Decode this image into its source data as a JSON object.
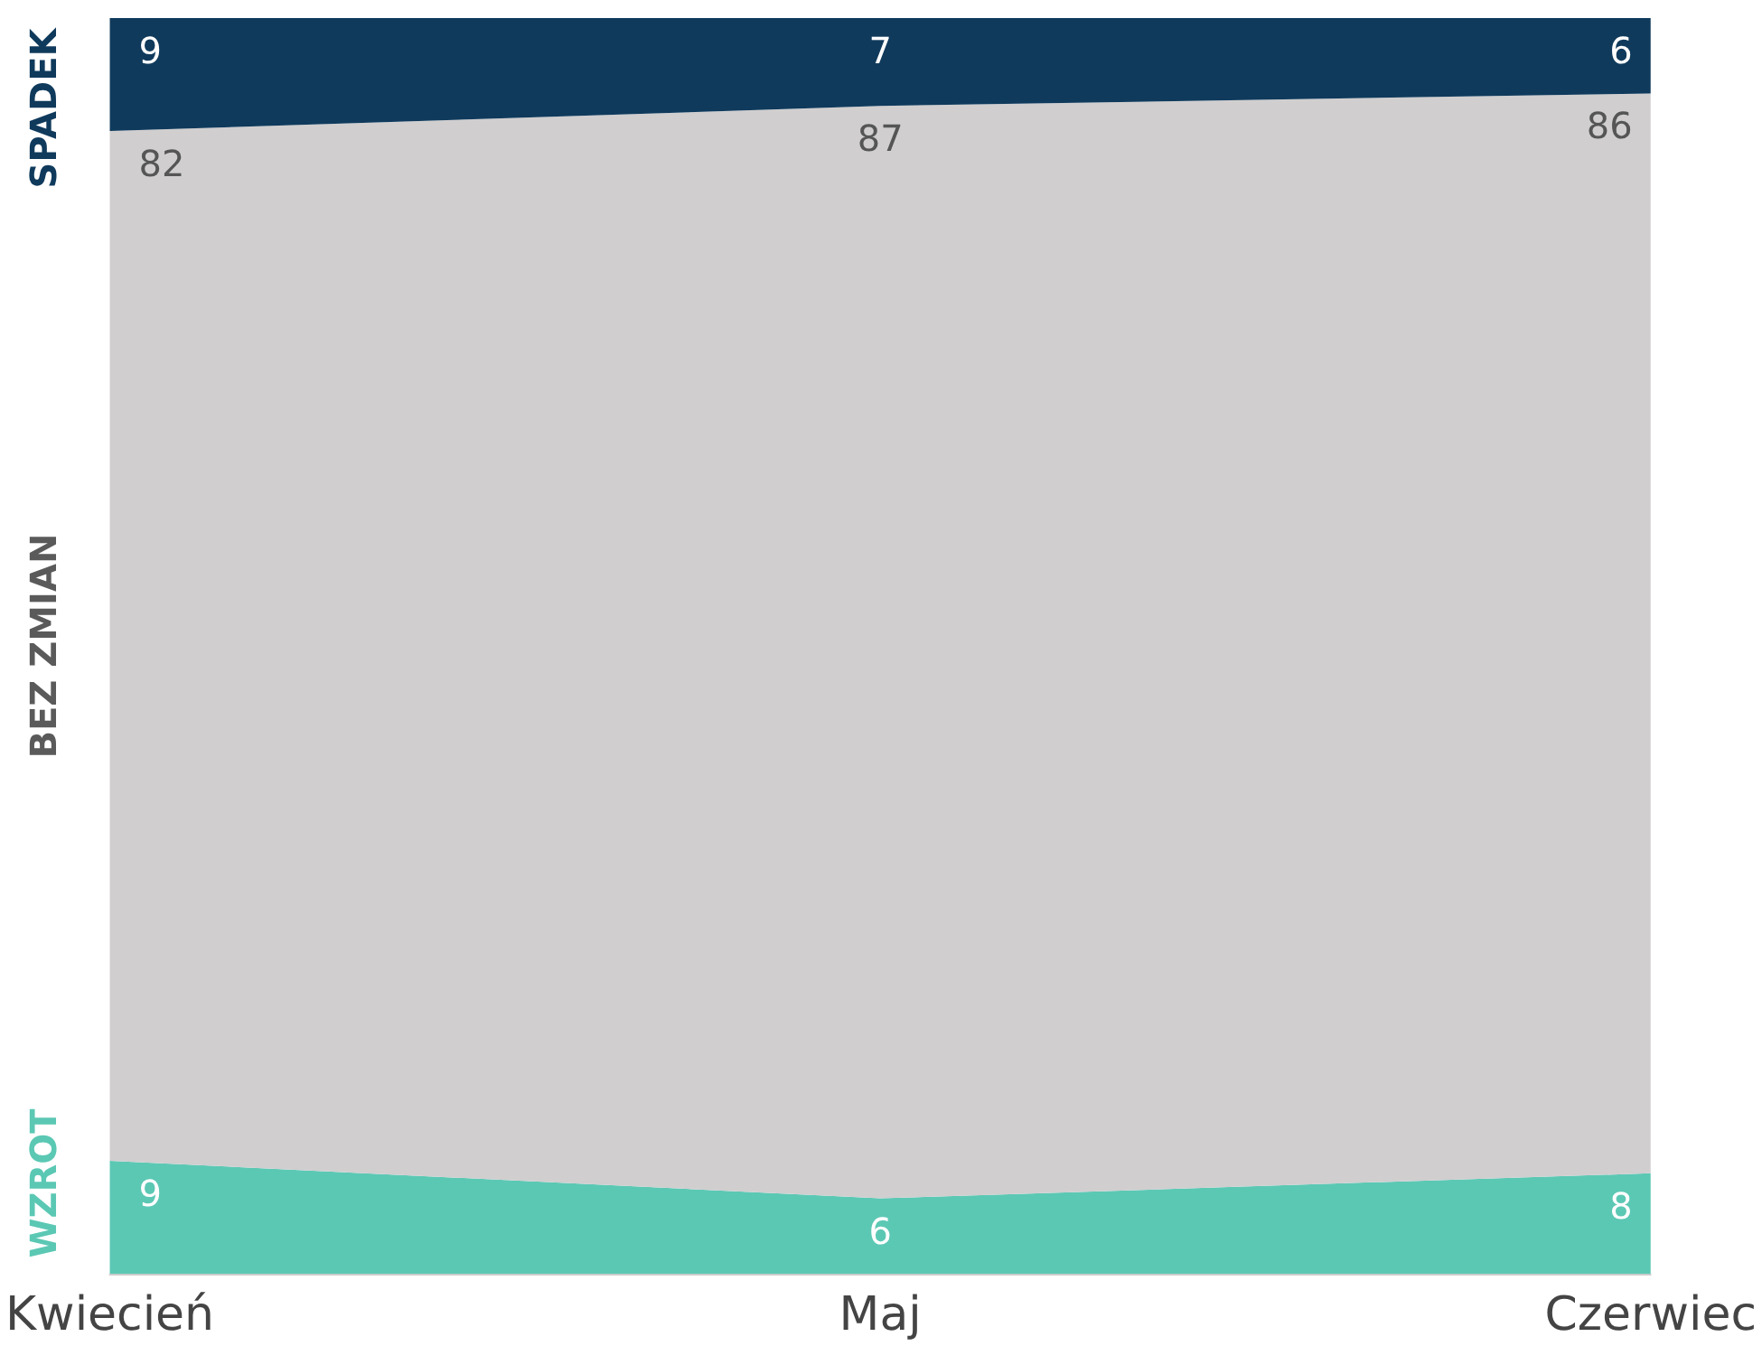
{
  "chart_data": {
    "type": "area",
    "stacked": true,
    "data_labels": true,
    "categories": [
      "Kwiecień",
      "Maj",
      "Czerwiec"
    ],
    "series": [
      {
        "name": "WZROT",
        "color": "#5bc8b4",
        "values": [
          9,
          6,
          8
        ]
      },
      {
        "name": "BEZ ZMIAN",
        "color": "#d0cecf",
        "values": [
          82,
          87,
          86
        ]
      },
      {
        "name": "SPADEK",
        "color": "#0f3a5c",
        "values": [
          9,
          7,
          6
        ]
      }
    ]
  }
}
